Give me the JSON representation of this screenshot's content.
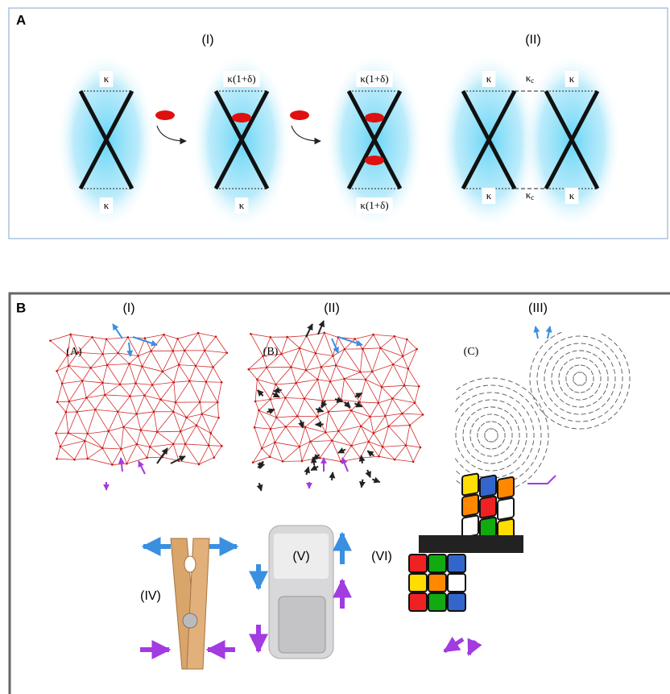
{
  "panel_a": {
    "label": "A",
    "groups": [
      "(I)",
      "(II)"
    ],
    "diagrams": [
      {
        "top": "κ",
        "bottom": "κ"
      },
      {
        "top": "κ(1+δ)",
        "bottom": "κ"
      },
      {
        "top": "κ(1+δ)",
        "bottom": "κ(1+δ)"
      }
    ],
    "coupled": {
      "left_top": "κ",
      "left_bottom": "κ",
      "right_top": "κ",
      "right_bottom": "κ",
      "coupling_top": {
        "symbol": "κ",
        "subscript": "c"
      },
      "coupling_bottom": {
        "symbol": "κ",
        "subscript": "c"
      }
    }
  },
  "panel_b": {
    "label": "B",
    "networks": [
      {
        "group": "(I)",
        "tag": "(A)"
      },
      {
        "group": "(II)",
        "tag": "(B)"
      },
      {
        "group": "(III)",
        "tag": "(C)"
      }
    ],
    "objects": [
      "(IV)",
      "(V)",
      "(VI)"
    ]
  }
}
